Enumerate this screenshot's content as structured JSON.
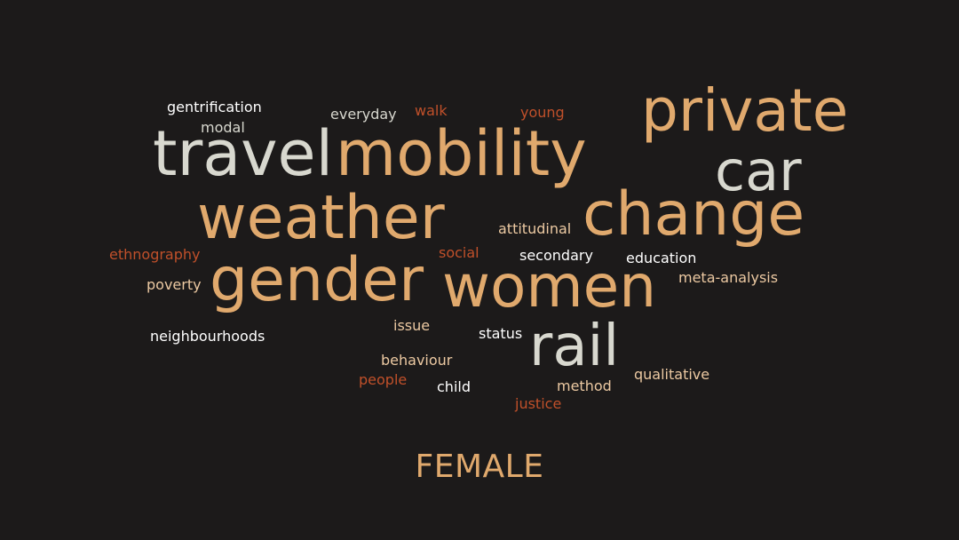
{
  "colors": {
    "background": "#1c1a1a",
    "tan": "#e0a96d",
    "light_gray": "#d8d8cf",
    "rust": "#c0502a",
    "white": "#ffffff",
    "light_tan": "#ecc9a2"
  },
  "words": {
    "private": "private",
    "car": "car",
    "travel": "travel",
    "mobility": "mobility",
    "weather": "weather",
    "change": "change",
    "gender": "gender",
    "women": "women",
    "rail": "rail",
    "gentrification": "gentrification",
    "modal": "modal",
    "everyday": "everyday",
    "walk": "walk",
    "young": "young",
    "attitudinal": "attitudinal",
    "ethnography": "ethnography",
    "social": "social",
    "secondary": "secondary",
    "education": "education",
    "poverty": "poverty",
    "meta_analysis": "meta-analysis",
    "issue": "issue",
    "status": "status",
    "neighbourhoods": "neighbourhoods",
    "behaviour": "behaviour",
    "qualitative": "qualitative",
    "people": "people",
    "child": "child",
    "method": "method",
    "justice": "justice"
  },
  "footer": {
    "label": "FEMALE"
  }
}
